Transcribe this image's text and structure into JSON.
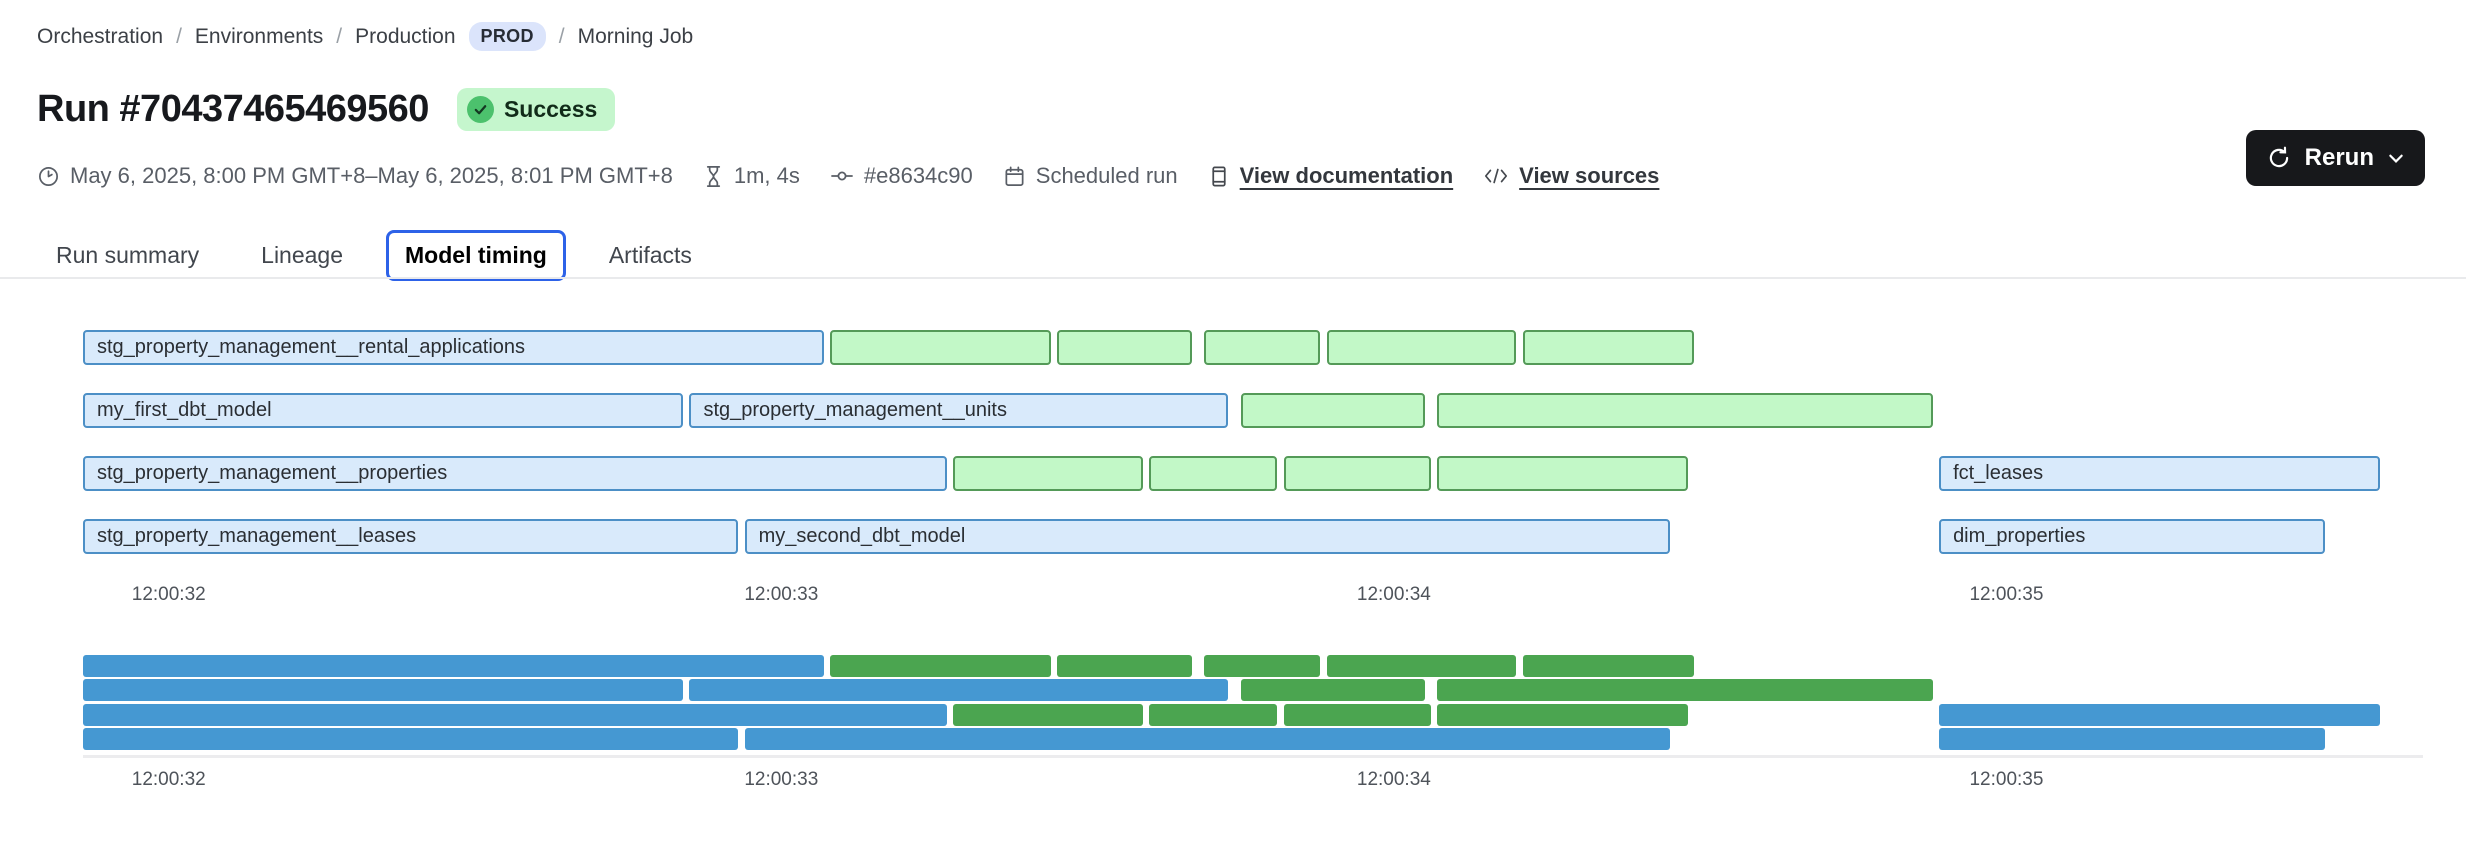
{
  "breadcrumb": {
    "separator": "/",
    "items": [
      "Orchestration",
      "Environments",
      "Production"
    ],
    "env_badge": "PROD",
    "current": "Morning Job"
  },
  "header": {
    "title": "Run #70437465469560",
    "status_badge": "Success"
  },
  "meta": {
    "date_range": "May 6, 2025, 8:00 PM GMT+8–May 6, 2025, 8:01 PM GMT+8",
    "duration": "1m, 4s",
    "commit": "#e8634c90",
    "run_type": "Scheduled run",
    "docs_link": "View documentation",
    "sources_link": "View sources"
  },
  "actions": {
    "rerun_label": "Rerun"
  },
  "tabs": [
    {
      "label": "Run summary",
      "active": false
    },
    {
      "label": "Lineage",
      "active": false
    },
    {
      "label": "Model timing",
      "active": true
    },
    {
      "label": "Artifacts",
      "active": false
    }
  ],
  "chart_data": {
    "type": "gantt",
    "title": "Model timing",
    "unit": "seconds after 12:00:00",
    "x_domain": [
      31.86,
      35.68
    ],
    "x_ticks": [
      {
        "label": "12:00:32",
        "t": 32
      },
      {
        "label": "12:00:33",
        "t": 33
      },
      {
        "label": "12:00:34",
        "t": 34
      },
      {
        "label": "12:00:35",
        "t": 35
      }
    ],
    "colors": {
      "model_fill": "#d9eafb",
      "model_border": "#4c8fc6",
      "test_fill": "#c2f8c7",
      "test_border": "#549a58",
      "minimap_model": "#4598d2",
      "minimap_test": "#4ba550"
    },
    "legend": {
      "model": "blue = model",
      "test": "green = test"
    },
    "rows": [
      {
        "bars": [
          {
            "label": "stg_property_management__rental_applications",
            "kind": "model",
            "start": 31.86,
            "end": 33.07
          },
          {
            "label": "",
            "kind": "test",
            "start": 33.08,
            "end": 33.44
          },
          {
            "label": "",
            "kind": "test",
            "start": 33.45,
            "end": 33.67
          },
          {
            "label": "",
            "kind": "test",
            "start": 33.69,
            "end": 33.88
          },
          {
            "label": "",
            "kind": "test",
            "start": 33.89,
            "end": 34.2
          },
          {
            "label": "",
            "kind": "test",
            "start": 34.21,
            "end": 34.49
          }
        ]
      },
      {
        "bars": [
          {
            "label": "my_first_dbt_model",
            "kind": "model",
            "start": 31.86,
            "end": 32.84
          },
          {
            "label": "stg_property_management__units",
            "kind": "model",
            "start": 32.85,
            "end": 33.73
          },
          {
            "label": "",
            "kind": "test",
            "start": 33.75,
            "end": 34.05
          },
          {
            "label": "",
            "kind": "test",
            "start": 34.07,
            "end": 34.88
          }
        ]
      },
      {
        "bars": [
          {
            "label": "stg_property_management__properties",
            "kind": "model",
            "start": 31.86,
            "end": 33.27
          },
          {
            "label": "",
            "kind": "test",
            "start": 33.28,
            "end": 33.59
          },
          {
            "label": "",
            "kind": "test",
            "start": 33.6,
            "end": 33.81
          },
          {
            "label": "",
            "kind": "test",
            "start": 33.82,
            "end": 34.06
          },
          {
            "label": "",
            "kind": "test",
            "start": 34.07,
            "end": 34.48
          },
          {
            "label": "fct_leases",
            "kind": "model",
            "start": 34.89,
            "end": 35.61
          }
        ]
      },
      {
        "bars": [
          {
            "label": "stg_property_management__leases",
            "kind": "model",
            "start": 31.86,
            "end": 32.93
          },
          {
            "label": "my_second_dbt_model",
            "kind": "model",
            "start": 32.94,
            "end": 34.45
          },
          {
            "label": "dim_properties",
            "kind": "model",
            "start": 34.89,
            "end": 35.52
          }
        ]
      }
    ]
  }
}
